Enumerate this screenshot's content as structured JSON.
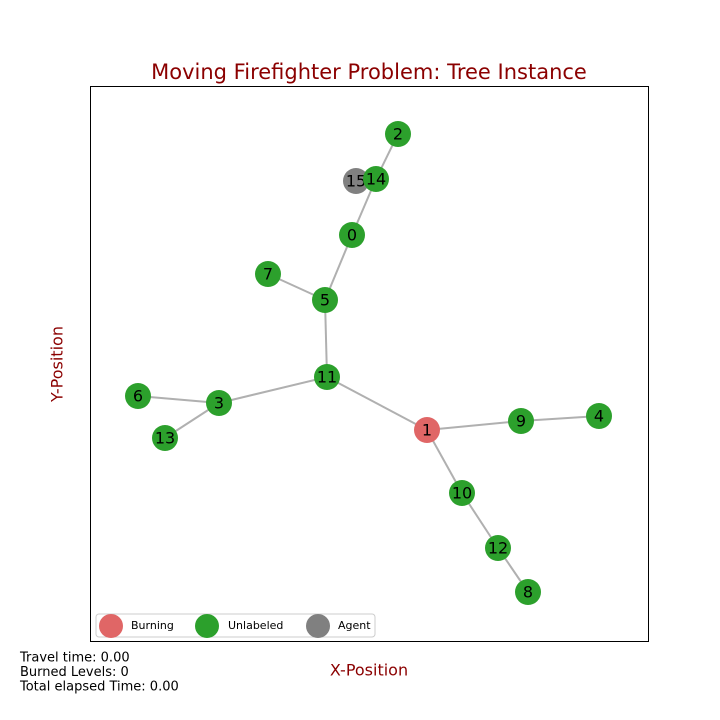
{
  "title": "Moving Firefighter Problem: Tree Instance",
  "x_label": "X-Position",
  "y_label": "Y-Position",
  "nodes": [
    {
      "label": "0",
      "color": "#2ca02c"
    },
    {
      "label": "1",
      "color": "#e06666"
    },
    {
      "label": "2",
      "color": "#2ca02c"
    },
    {
      "label": "3",
      "color": "#2ca02c"
    },
    {
      "label": "4",
      "color": "#2ca02c"
    },
    {
      "label": "5",
      "color": "#2ca02c"
    },
    {
      "label": "6",
      "color": "#2ca02c"
    },
    {
      "label": "7",
      "color": "#2ca02c"
    },
    {
      "label": "8",
      "color": "#2ca02c"
    },
    {
      "label": "9",
      "color": "#2ca02c"
    },
    {
      "label": "10",
      "color": "#2ca02c"
    },
    {
      "label": "11",
      "color": "#2ca02c"
    },
    {
      "label": "12",
      "color": "#2ca02c"
    },
    {
      "label": "13",
      "color": "#2ca02c"
    },
    {
      "label": "14",
      "color": "#2ca02c"
    },
    {
      "label": "15",
      "color": "#808080"
    }
  ],
  "edges": [
    [
      2,
      14
    ],
    [
      14,
      0
    ],
    [
      0,
      5
    ],
    [
      5,
      7
    ],
    [
      5,
      11
    ],
    [
      11,
      3
    ],
    [
      3,
      6
    ],
    [
      3,
      13
    ],
    [
      11,
      1
    ],
    [
      1,
      9
    ],
    [
      9,
      4
    ],
    [
      1,
      10
    ],
    [
      10,
      12
    ],
    [
      12,
      8
    ]
  ],
  "legend": [
    {
      "name": "Burning",
      "color": "#e06666"
    },
    {
      "name": "Unlabeled",
      "color": "#2ca02c"
    },
    {
      "name": "Agent",
      "color": "#808080"
    }
  ],
  "status": [
    "Travel time: 0.00",
    "Burned Levels: 0",
    "Total elapsed Time: 0.00"
  ]
}
